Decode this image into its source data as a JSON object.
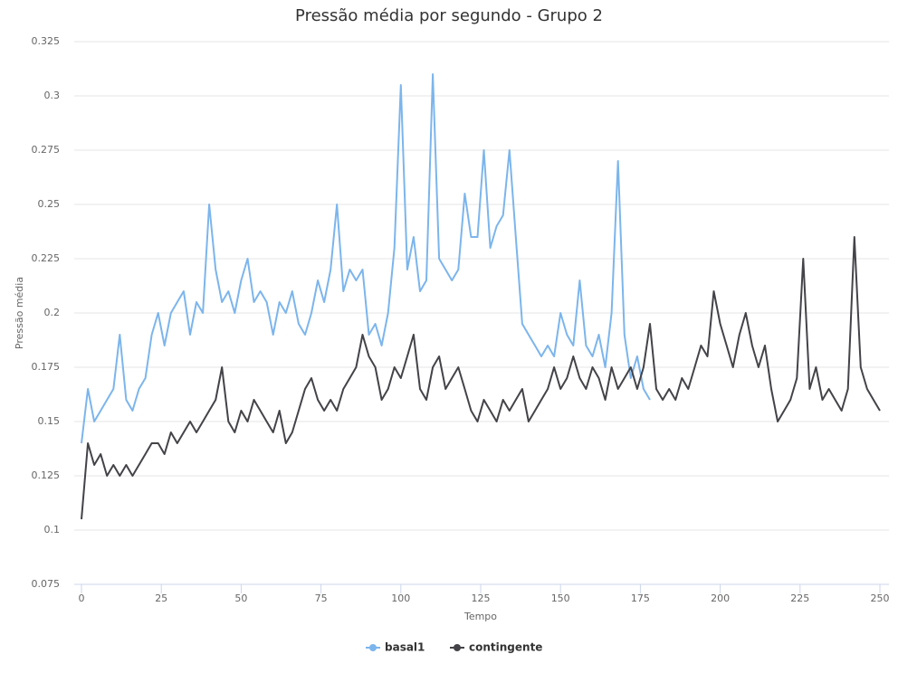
{
  "chart_data": {
    "type": "line",
    "title": "Pressão média por segundo - Grupo 2",
    "x_label": "Tempo",
    "y_label": "Pressão média",
    "series": [
      {
        "name": "basal1",
        "color": "#7cb5ec",
        "x": [
          0,
          2,
          4,
          6,
          8,
          10,
          12,
          14,
          16,
          18,
          20,
          22,
          24,
          26,
          28,
          30,
          32,
          34,
          36,
          38,
          40,
          42,
          44,
          46,
          48,
          50,
          52,
          54,
          56,
          58,
          60,
          62,
          64,
          66,
          68,
          70,
          72,
          74,
          76,
          78,
          80,
          82,
          84,
          86,
          88,
          90,
          92,
          94,
          96,
          98,
          100,
          102,
          104,
          106,
          108,
          110,
          112,
          114,
          116,
          118,
          120,
          122,
          124,
          126,
          128,
          130,
          132,
          134,
          136,
          138,
          140,
          142,
          144,
          146,
          148,
          150,
          152,
          154,
          156,
          158,
          160,
          162,
          164,
          166,
          168,
          170,
          172,
          174,
          176,
          178
        ],
        "values": [
          0.14,
          0.165,
          0.15,
          0.155,
          0.16,
          0.165,
          0.19,
          0.16,
          0.155,
          0.165,
          0.17,
          0.19,
          0.2,
          0.185,
          0.2,
          0.205,
          0.21,
          0.19,
          0.205,
          0.2,
          0.25,
          0.22,
          0.205,
          0.21,
          0.2,
          0.215,
          0.225,
          0.205,
          0.21,
          0.205,
          0.19,
          0.205,
          0.2,
          0.21,
          0.195,
          0.19,
          0.2,
          0.215,
          0.205,
          0.22,
          0.25,
          0.21,
          0.22,
          0.215,
          0.22,
          0.19,
          0.195,
          0.185,
          0.2,
          0.23,
          0.305,
          0.22,
          0.235,
          0.21,
          0.215,
          0.31,
          0.225,
          0.22,
          0.215,
          0.22,
          0.255,
          0.235,
          0.235,
          0.275,
          0.23,
          0.24,
          0.245,
          0.275,
          0.235,
          0.195,
          0.19,
          0.185,
          0.18,
          0.185,
          0.18,
          0.2,
          0.19,
          0.185,
          0.215,
          0.185,
          0.18,
          0.19,
          0.175,
          0.2,
          0.27,
          0.19,
          0.17,
          0.18,
          0.165,
          0.16
        ]
      },
      {
        "name": "contingente",
        "color": "#434348",
        "x": [
          0,
          2,
          4,
          6,
          8,
          10,
          12,
          14,
          16,
          18,
          20,
          22,
          24,
          26,
          28,
          30,
          32,
          34,
          36,
          38,
          40,
          42,
          44,
          46,
          48,
          50,
          52,
          54,
          56,
          58,
          60,
          62,
          64,
          66,
          68,
          70,
          72,
          74,
          76,
          78,
          80,
          82,
          84,
          86,
          88,
          90,
          92,
          94,
          96,
          98,
          100,
          102,
          104,
          106,
          108,
          110,
          112,
          114,
          116,
          118,
          120,
          122,
          124,
          126,
          128,
          130,
          132,
          134,
          136,
          138,
          140,
          142,
          144,
          146,
          148,
          150,
          152,
          154,
          156,
          158,
          160,
          162,
          164,
          166,
          168,
          170,
          172,
          174,
          176,
          178,
          180,
          182,
          184,
          186,
          188,
          190,
          192,
          194,
          196,
          198,
          200,
          202,
          204,
          206,
          208,
          210,
          212,
          214,
          216,
          218,
          220,
          222,
          224,
          226,
          228,
          230,
          232,
          234,
          236,
          238,
          240,
          242,
          244,
          246,
          248,
          250
        ],
        "values": [
          0.105,
          0.14,
          0.13,
          0.135,
          0.125,
          0.13,
          0.125,
          0.13,
          0.125,
          0.13,
          0.135,
          0.14,
          0.14,
          0.135,
          0.145,
          0.14,
          0.145,
          0.15,
          0.145,
          0.15,
          0.155,
          0.16,
          0.175,
          0.15,
          0.145,
          0.155,
          0.15,
          0.16,
          0.155,
          0.15,
          0.145,
          0.155,
          0.14,
          0.145,
          0.155,
          0.165,
          0.17,
          0.16,
          0.155,
          0.16,
          0.155,
          0.165,
          0.17,
          0.175,
          0.19,
          0.18,
          0.175,
          0.16,
          0.165,
          0.175,
          0.17,
          0.18,
          0.19,
          0.165,
          0.16,
          0.175,
          0.18,
          0.165,
          0.17,
          0.175,
          0.165,
          0.155,
          0.15,
          0.16,
          0.155,
          0.15,
          0.16,
          0.155,
          0.16,
          0.165,
          0.15,
          0.155,
          0.16,
          0.165,
          0.175,
          0.165,
          0.17,
          0.18,
          0.17,
          0.165,
          0.175,
          0.17,
          0.16,
          0.175,
          0.165,
          0.17,
          0.175,
          0.165,
          0.175,
          0.195,
          0.165,
          0.16,
          0.165,
          0.16,
          0.17,
          0.165,
          0.175,
          0.185,
          0.18,
          0.21,
          0.195,
          0.185,
          0.175,
          0.19,
          0.2,
          0.185,
          0.175,
          0.185,
          0.165,
          0.15,
          0.155,
          0.16,
          0.17,
          0.225,
          0.165,
          0.175,
          0.16,
          0.165,
          0.16,
          0.155,
          0.165,
          0.235,
          0.175,
          0.165,
          0.16,
          0.155
        ]
      }
    ],
    "xlim": [
      0,
      250
    ],
    "xticks": [
      0,
      25,
      50,
      75,
      100,
      125,
      150,
      175,
      200,
      225,
      250
    ],
    "ylim": [
      0.075,
      0.325
    ],
    "yticks": [
      0.075,
      0.1,
      0.125,
      0.15,
      0.175,
      0.2,
      0.225,
      0.25,
      0.275,
      0.3,
      0.325
    ],
    "grid": true
  }
}
